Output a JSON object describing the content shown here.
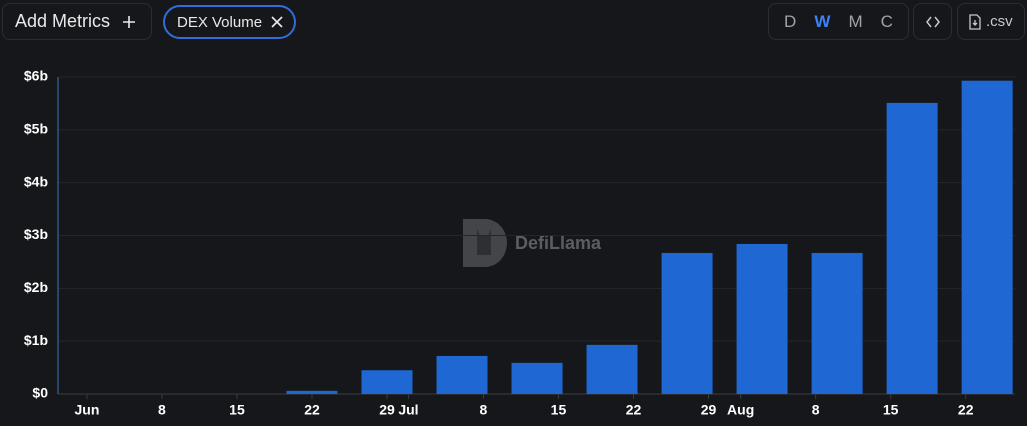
{
  "toolbar": {
    "add_metrics": "Add Metrics",
    "metric_chip": "DEX Volume",
    "intervals": [
      "D",
      "W",
      "M",
      "C"
    ],
    "active_interval": "W",
    "csv": ".csv"
  },
  "chart_data": {
    "type": "bar",
    "watermark": "DefiLlama",
    "color": "#1f67d2",
    "x": [
      21,
      28,
      35,
      42,
      49,
      56,
      63,
      70,
      77,
      84
    ],
    "values": [
      60000000,
      450000000,
      720000000,
      590000000,
      930000000,
      2670000000,
      2840000000,
      2670000000,
      5510000000,
      5930000000
    ],
    "xlim": [
      -2.7,
      86.6
    ],
    "xticks": [
      {
        "value": 0,
        "label": "Jun"
      },
      {
        "value": 7,
        "label": "8"
      },
      {
        "value": 14,
        "label": "15"
      },
      {
        "value": 21,
        "label": "22"
      },
      {
        "value": 28,
        "label": "29"
      },
      {
        "value": 30,
        "label": "Jul"
      },
      {
        "value": 37,
        "label": "8"
      },
      {
        "value": 44,
        "label": "15"
      },
      {
        "value": 51,
        "label": "22"
      },
      {
        "value": 58,
        "label": "29"
      },
      {
        "value": 61,
        "label": "Aug"
      },
      {
        "value": 68,
        "label": "8"
      },
      {
        "value": 75,
        "label": "15"
      },
      {
        "value": 82,
        "label": "22"
      }
    ],
    "ylim": [
      0,
      6000000000
    ],
    "yticks": [
      {
        "value": 0,
        "label": "$0"
      },
      {
        "value": 1000000000,
        "label": "$1b"
      },
      {
        "value": 2000000000,
        "label": "$2b"
      },
      {
        "value": 3000000000,
        "label": "$3b"
      },
      {
        "value": 4000000000,
        "label": "$4b"
      },
      {
        "value": 5000000000,
        "label": "$5b"
      },
      {
        "value": 6000000000,
        "label": "$6b"
      }
    ],
    "grid": true
  }
}
